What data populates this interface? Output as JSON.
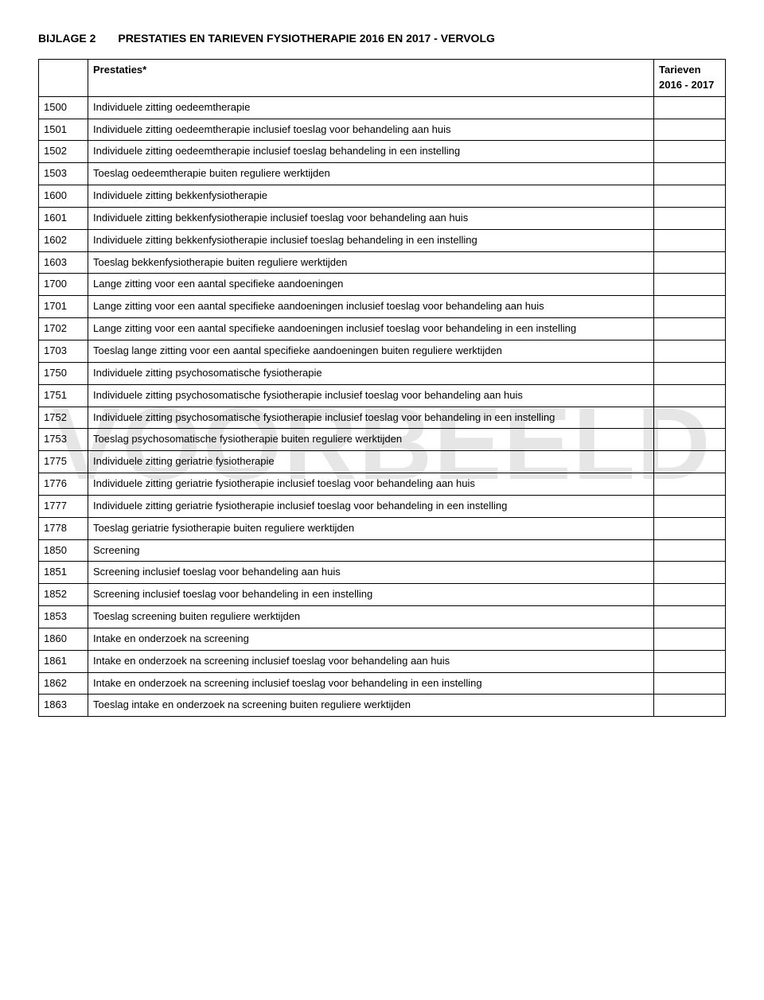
{
  "title_part1": "BIJLAGE 2",
  "title_part2": "PRESTATIES EN TARIEVEN FYSIOTHERAPIE 2016 EN 2017 - VERVOLG",
  "watermark": "VOORBEELD",
  "header": {
    "col1": "",
    "col2": "Prestaties*",
    "col3": "Tarieven 2016 - 2017"
  },
  "rows": [
    {
      "code": "1500",
      "desc": "Individuele zitting oedeemtherapie"
    },
    {
      "code": "1501",
      "desc": "Individuele zitting oedeemtherapie inclusief toeslag voor behandeling aan huis"
    },
    {
      "code": "1502",
      "desc": "Individuele zitting oedeemtherapie inclusief toeslag behandeling in een instelling"
    },
    {
      "code": "1503",
      "desc": "Toeslag oedeemtherapie buiten reguliere werktijden"
    },
    {
      "code": "1600",
      "desc": "Individuele zitting bekkenfysiotherapie"
    },
    {
      "code": "1601",
      "desc": "Individuele zitting bekkenfysiotherapie inclusief toeslag voor behandeling aan huis"
    },
    {
      "code": "1602",
      "desc": "Individuele zitting bekkenfysiotherapie inclusief toeslag behandeling in een instelling"
    },
    {
      "code": "1603",
      "desc": "Toeslag bekkenfysiotherapie buiten reguliere werktijden"
    },
    {
      "code": "1700",
      "desc": "Lange zitting voor een aantal specifieke aandoeningen"
    },
    {
      "code": "1701",
      "desc": "Lange zitting voor een aantal specifieke aandoeningen inclusief toeslag voor behandeling aan huis"
    },
    {
      "code": "1702",
      "desc": "Lange zitting voor een aantal specifieke aandoeningen inclusief toeslag voor behandeling in een instelling"
    },
    {
      "code": "1703",
      "desc": "Toeslag lange zitting voor een aantal specifieke aandoeningen buiten reguliere werktijden"
    },
    {
      "code": "1750",
      "desc": "Individuele zitting psychosomatische fysiotherapie"
    },
    {
      "code": "1751",
      "desc": "Individuele zitting psychosomatische fysiotherapie inclusief toeslag voor behandeling aan huis"
    },
    {
      "code": "1752",
      "desc": "Individuele zitting psychosomatische fysiotherapie inclusief toeslag voor behandeling in een instelling"
    },
    {
      "code": "1753",
      "desc": "Toeslag psychosomatische fysiotherapie buiten reguliere werktijden"
    },
    {
      "code": "1775",
      "desc": "Individuele zitting geriatrie fysiotherapie"
    },
    {
      "code": "1776",
      "desc": "Individuele zitting geriatrie fysiotherapie inclusief toeslag voor behandeling aan huis"
    },
    {
      "code": "1777",
      "desc": "Individuele zitting geriatrie fysiotherapie inclusief toeslag voor behandeling in een instelling"
    },
    {
      "code": "1778",
      "desc": "Toeslag geriatrie fysiotherapie buiten reguliere werktijden"
    },
    {
      "code": "1850",
      "desc": "Screening"
    },
    {
      "code": "1851",
      "desc": "Screening inclusief toeslag voor behandeling aan huis"
    },
    {
      "code": "1852",
      "desc": "Screening inclusief toeslag voor behandeling in een instelling"
    },
    {
      "code": "1853",
      "desc": "Toeslag screening buiten reguliere werktijden"
    },
    {
      "code": "1860",
      "desc": "Intake en onderzoek na screening"
    },
    {
      "code": "1861",
      "desc": "Intake en onderzoek na screening inclusief toeslag voor behandeling aan huis"
    },
    {
      "code": "1862",
      "desc": "Intake en onderzoek na screening inclusief toeslag voor behandeling in een instelling"
    },
    {
      "code": "1863",
      "desc": "Toeslag intake en onderzoek na screening buiten reguliere werktijden"
    }
  ]
}
